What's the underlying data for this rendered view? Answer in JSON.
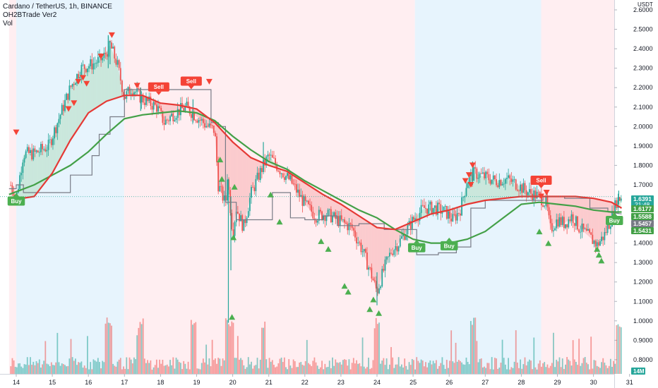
{
  "legend": {
    "title": "Cardano / TetherUS, 1h, BINANCE",
    "indicator": "OH2BTrade Ver2",
    "volume": "Vol"
  },
  "colors": {
    "bull": "#26a69a",
    "bear": "#ef5350",
    "zone_blue": "#e3f2fd",
    "zone_red": "#ffebee",
    "ma_red": "#e53935",
    "ma_green": "#43a047",
    "trail": "#787b86",
    "buy": "#4caf50",
    "sell": "#f44336"
  },
  "price_scale": {
    "currency": "USDT",
    "ticks": [
      "2.6000",
      "2.5000",
      "2.4000",
      "2.3000",
      "2.2000",
      "2.1000",
      "2.0000",
      "1.9000",
      "1.8000",
      "1.7000",
      "1.6000",
      "1.5000",
      "1.4000",
      "1.3000",
      "1.2000",
      "1.1000",
      "1.0000",
      "0.9000",
      "0.8000"
    ],
    "price_tags": [
      {
        "text": "1.6391",
        "sub": "21:48",
        "color": "#26a69a",
        "value": 1.6391
      },
      {
        "text": "1.6177",
        "color": "#43a047",
        "value": 1.6177
      },
      {
        "text": "1.5588",
        "color": "#43a047",
        "value": 1.5588
      },
      {
        "text": "1.5457",
        "color": "#787b86",
        "value": 1.5457
      },
      {
        "text": "1.5431",
        "color": "#43a047",
        "value": 1.5431
      }
    ],
    "volume_tag": "14M"
  },
  "time_ticks": [
    "14",
    "15",
    "16",
    "17",
    "18",
    "19",
    "20",
    "21",
    "22",
    "23",
    "24",
    "25",
    "26",
    "27",
    "28",
    "29",
    "30",
    "31"
  ],
  "chart_data": {
    "type": "candlestick",
    "title": "Cardano / TetherUS, 1h, BINANCE",
    "x_unit": "day of month",
    "ylim": [
      0.76,
      2.64
    ],
    "zones": [
      {
        "from": 13.8,
        "to": 14.0,
        "color": "red"
      },
      {
        "from": 14.0,
        "to": 16.99,
        "color": "blue"
      },
      {
        "from": 16.99,
        "to": 25.05,
        "color": "red"
      },
      {
        "from": 25.05,
        "to": 28.55,
        "color": "blue"
      },
      {
        "from": 28.55,
        "to": 30.6,
        "color": "red"
      },
      {
        "from": 30.6,
        "to": 30.78,
        "color": "blue"
      }
    ],
    "close_path": [
      [
        13.8,
        1.72
      ],
      [
        14.0,
        1.63
      ],
      [
        14.2,
        1.86
      ],
      [
        14.5,
        1.86
      ],
      [
        14.9,
        1.9
      ],
      [
        15.2,
        2.05
      ],
      [
        15.5,
        2.2
      ],
      [
        15.8,
        2.3
      ],
      [
        16.1,
        2.32
      ],
      [
        16.4,
        2.35
      ],
      [
        16.6,
        2.42
      ],
      [
        16.8,
        2.32
      ],
      [
        17.0,
        2.15
      ],
      [
        17.2,
        2.2
      ],
      [
        17.5,
        2.14
      ],
      [
        17.9,
        2.1
      ],
      [
        18.1,
        2.02
      ],
      [
        18.4,
        2.07
      ],
      [
        18.7,
        2.1
      ],
      [
        19.0,
        2.05
      ],
      [
        19.3,
        2.0
      ],
      [
        19.5,
        1.98
      ],
      [
        19.6,
        1.7
      ],
      [
        19.8,
        1.6
      ],
      [
        19.85,
        1.75
      ],
      [
        20.0,
        1.45
      ],
      [
        20.1,
        1.58
      ],
      [
        20.3,
        1.48
      ],
      [
        20.5,
        1.65
      ],
      [
        20.8,
        1.78
      ],
      [
        21.0,
        1.85
      ],
      [
        21.3,
        1.78
      ],
      [
        21.6,
        1.72
      ],
      [
        21.8,
        1.66
      ],
      [
        22.0,
        1.6
      ],
      [
        22.3,
        1.54
      ],
      [
        22.6,
        1.55
      ],
      [
        22.9,
        1.52
      ],
      [
        23.1,
        1.5
      ],
      [
        23.3,
        1.48
      ],
      [
        23.6,
        1.36
      ],
      [
        23.8,
        1.26
      ],
      [
        24.0,
        1.15
      ],
      [
        24.2,
        1.27
      ],
      [
        24.4,
        1.36
      ],
      [
        24.6,
        1.4
      ],
      [
        24.8,
        1.46
      ],
      [
        25.0,
        1.52
      ],
      [
        25.3,
        1.58
      ],
      [
        25.6,
        1.58
      ],
      [
        25.9,
        1.56
      ],
      [
        26.1,
        1.52
      ],
      [
        26.3,
        1.57
      ],
      [
        26.5,
        1.72
      ],
      [
        26.7,
        1.76
      ],
      [
        27.0,
        1.74
      ],
      [
        27.3,
        1.72
      ],
      [
        27.6,
        1.73
      ],
      [
        27.9,
        1.7
      ],
      [
        28.2,
        1.66
      ],
      [
        28.5,
        1.64
      ],
      [
        28.7,
        1.6
      ],
      [
        28.8,
        1.47
      ],
      [
        29.0,
        1.52
      ],
      [
        29.2,
        1.5
      ],
      [
        29.4,
        1.54
      ],
      [
        29.6,
        1.48
      ],
      [
        29.9,
        1.43
      ],
      [
        30.1,
        1.39
      ],
      [
        30.3,
        1.44
      ],
      [
        30.5,
        1.53
      ],
      [
        30.65,
        1.62
      ],
      [
        30.78,
        1.64
      ]
    ],
    "ma_red": [
      [
        13.8,
        1.62
      ],
      [
        14.5,
        1.64
      ],
      [
        15.0,
        1.76
      ],
      [
        15.5,
        1.93
      ],
      [
        16.0,
        2.07
      ],
      [
        16.5,
        2.13
      ],
      [
        17.0,
        2.16
      ],
      [
        17.5,
        2.16
      ],
      [
        18.0,
        2.12
      ],
      [
        18.5,
        2.11
      ],
      [
        19.0,
        2.09
      ],
      [
        19.5,
        2.02
      ],
      [
        20.0,
        1.92
      ],
      [
        20.5,
        1.84
      ],
      [
        21.0,
        1.8
      ],
      [
        21.5,
        1.77
      ],
      [
        22.0,
        1.71
      ],
      [
        22.5,
        1.65
      ],
      [
        23.0,
        1.6
      ],
      [
        23.5,
        1.54
      ],
      [
        24.0,
        1.48
      ],
      [
        24.5,
        1.47
      ],
      [
        25.0,
        1.51
      ],
      [
        25.5,
        1.55
      ],
      [
        26.0,
        1.57
      ],
      [
        26.5,
        1.6
      ],
      [
        27.0,
        1.62
      ],
      [
        27.5,
        1.63
      ],
      [
        28.0,
        1.64
      ],
      [
        28.5,
        1.64
      ],
      [
        29.0,
        1.64
      ],
      [
        29.5,
        1.64
      ],
      [
        30.0,
        1.63
      ],
      [
        30.5,
        1.61
      ],
      [
        30.78,
        1.58
      ]
    ],
    "ma_green": [
      [
        13.8,
        1.65
      ],
      [
        14.5,
        1.7
      ],
      [
        15.0,
        1.75
      ],
      [
        15.5,
        1.8
      ],
      [
        16.0,
        1.87
      ],
      [
        16.5,
        1.96
      ],
      [
        17.0,
        2.04
      ],
      [
        17.5,
        2.06
      ],
      [
        18.0,
        2.07
      ],
      [
        18.5,
        2.08
      ],
      [
        19.0,
        2.07
      ],
      [
        19.5,
        2.03
      ],
      [
        20.0,
        1.95
      ],
      [
        20.5,
        1.88
      ],
      [
        21.0,
        1.82
      ],
      [
        21.5,
        1.78
      ],
      [
        22.0,
        1.72
      ],
      [
        22.5,
        1.67
      ],
      [
        23.0,
        1.62
      ],
      [
        23.5,
        1.57
      ],
      [
        24.0,
        1.53
      ],
      [
        24.5,
        1.47
      ],
      [
        25.0,
        1.42
      ],
      [
        25.5,
        1.4
      ],
      [
        26.0,
        1.4
      ],
      [
        26.5,
        1.42
      ],
      [
        27.0,
        1.46
      ],
      [
        27.5,
        1.53
      ],
      [
        28.0,
        1.6
      ],
      [
        28.5,
        1.61
      ],
      [
        29.0,
        1.6
      ],
      [
        29.5,
        1.59
      ],
      [
        30.0,
        1.57
      ],
      [
        30.5,
        1.56
      ],
      [
        30.78,
        1.56
      ]
    ],
    "trail": [
      [
        13.8,
        1.68
      ],
      [
        14.0,
        1.68
      ],
      [
        14.0,
        1.7
      ],
      [
        14.2,
        1.7
      ],
      [
        14.2,
        1.66
      ],
      [
        15.5,
        1.66
      ],
      [
        15.5,
        1.75
      ],
      [
        16.1,
        1.75
      ],
      [
        16.1,
        1.85
      ],
      [
        16.3,
        1.85
      ],
      [
        16.3,
        1.96
      ],
      [
        16.6,
        1.96
      ],
      [
        16.6,
        2.05
      ],
      [
        17.0,
        2.05
      ],
      [
        17.0,
        2.19
      ],
      [
        19.4,
        2.19
      ],
      [
        19.4,
        2.02
      ],
      [
        19.6,
        2.02
      ],
      [
        19.6,
        2.0
      ],
      [
        19.8,
        2.0
      ],
      [
        19.8,
        1.61
      ],
      [
        20.1,
        1.61
      ],
      [
        20.1,
        1.52
      ],
      [
        21.1,
        1.52
      ],
      [
        21.1,
        1.66
      ],
      [
        21.6,
        1.66
      ],
      [
        21.6,
        1.53
      ],
      [
        22.0,
        1.53
      ],
      [
        22.0,
        1.52
      ],
      [
        22.5,
        1.52
      ],
      [
        22.5,
        1.54
      ],
      [
        22.9,
        1.54
      ],
      [
        22.9,
        1.49
      ],
      [
        23.5,
        1.49
      ],
      [
        23.5,
        1.5
      ],
      [
        24.2,
        1.5
      ],
      [
        24.2,
        1.47
      ],
      [
        24.9,
        1.47
      ],
      [
        24.9,
        1.47
      ],
      [
        25.1,
        1.47
      ],
      [
        25.1,
        1.34
      ],
      [
        25.7,
        1.34
      ],
      [
        25.7,
        1.35
      ],
      [
        26.2,
        1.35
      ],
      [
        26.2,
        1.38
      ],
      [
        26.6,
        1.38
      ],
      [
        26.6,
        1.58
      ],
      [
        27.0,
        1.58
      ],
      [
        27.0,
        1.62
      ],
      [
        28.6,
        1.62
      ],
      [
        28.6,
        1.64
      ],
      [
        29.2,
        1.64
      ],
      [
        29.2,
        1.63
      ],
      [
        29.9,
        1.63
      ],
      [
        29.9,
        1.58
      ],
      [
        30.4,
        1.58
      ],
      [
        30.4,
        1.56
      ],
      [
        30.78,
        1.55
      ]
    ],
    "spikes": [
      {
        "x": 19.88,
        "low": 0.99,
        "high": 1.73
      },
      {
        "x": 19.95,
        "low": 1.26,
        "high": 1.64
      },
      {
        "x": 16.55,
        "low": 2.3,
        "high": 2.47
      },
      {
        "x": 16.6,
        "low": 2.32,
        "high": 2.44
      },
      {
        "x": 17.45,
        "low": 2.08,
        "high": 2.2
      },
      {
        "x": 18.9,
        "low": 2.02,
        "high": 2.14
      },
      {
        "x": 20.85,
        "low": 1.78,
        "high": 1.92
      },
      {
        "x": 24.0,
        "low": 1.08,
        "high": 1.25
      },
      {
        "x": 26.65,
        "low": 1.7,
        "high": 1.82
      },
      {
        "x": 30.7,
        "low": 1.6,
        "high": 1.67
      }
    ],
    "sell_triangles": [
      [
        14.0,
        1.97
      ],
      [
        15.45,
        2.09
      ],
      [
        15.6,
        2.12
      ],
      [
        15.72,
        2.23
      ],
      [
        15.85,
        2.25
      ],
      [
        15.95,
        2.22
      ],
      [
        16.35,
        2.36
      ],
      [
        16.65,
        2.47
      ],
      [
        17.35,
        2.21
      ],
      [
        19.35,
        2.23
      ],
      [
        26.55,
        1.75
      ],
      [
        26.45,
        1.72
      ],
      [
        26.6,
        1.7
      ],
      [
        26.65,
        1.8
      ],
      [
        28.55,
        1.64
      ],
      [
        28.7,
        1.66
      ]
    ],
    "buy_triangles": [
      [
        19.7,
        1.73
      ],
      [
        19.65,
        1.83
      ],
      [
        20.05,
        1.69
      ],
      [
        21.05,
        1.65
      ],
      [
        21.3,
        1.51
      ],
      [
        22.45,
        1.41
      ],
      [
        22.65,
        1.37
      ],
      [
        23.1,
        1.18
      ],
      [
        23.2,
        1.15
      ],
      [
        23.9,
        1.11
      ],
      [
        23.8,
        1.06
      ],
      [
        24.05,
        1.04
      ],
      [
        20.02,
        1.43
      ],
      [
        19.98,
        1.02
      ],
      [
        28.5,
        1.46
      ],
      [
        28.75,
        1.4
      ],
      [
        30.1,
        1.37
      ],
      [
        30.15,
        1.34
      ],
      [
        30.22,
        1.31
      ]
    ],
    "labels": [
      {
        "text": "Buy",
        "type": "buy",
        "x": 14.0,
        "price": 1.64
      },
      {
        "text": "Sell",
        "type": "sell",
        "x": 17.95,
        "price": 2.18
      },
      {
        "text": "Sell",
        "type": "sell",
        "x": 18.85,
        "price": 2.21
      },
      {
        "text": "Buy",
        "type": "buy",
        "x": 25.1,
        "price": 1.4
      },
      {
        "text": "Buy",
        "type": "buy",
        "x": 26.0,
        "price": 1.41
      },
      {
        "text": "Sell",
        "type": "sell",
        "x": 28.55,
        "price": 1.7
      },
      {
        "text": "Buy",
        "type": "buy",
        "x": 30.58,
        "price": 1.54
      }
    ]
  }
}
